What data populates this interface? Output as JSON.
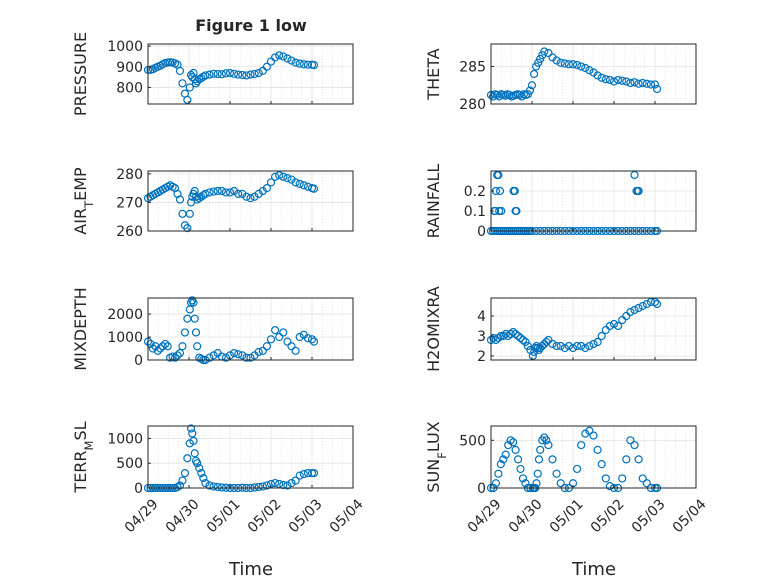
{
  "figure_title": "Figure 1 low",
  "x_tick_labels": [
    "04/29",
    "04/30",
    "05/01",
    "05/02",
    "05/03",
    "05/04"
  ],
  "x_label": "Time",
  "marker_color": "#0072BD",
  "chart_data": [
    {
      "type": "scatter",
      "ylabel": "PRESSURE",
      "xlim": [
        "04/29",
        "05/04"
      ],
      "ylim": [
        720,
        1010
      ],
      "grid": true,
      "yticks": [
        800,
        900,
        1000
      ],
      "x": [
        0.0,
        0.06,
        0.12,
        0.18,
        0.24,
        0.3,
        0.36,
        0.42,
        0.48,
        0.54,
        0.6,
        0.66,
        0.72,
        0.78,
        0.84,
        0.9,
        0.96,
        1.02,
        1.05,
        1.08,
        1.11,
        1.14,
        1.17,
        1.2,
        1.25,
        1.3,
        1.35,
        1.4,
        1.5,
        1.6,
        1.7,
        1.8,
        1.9,
        2.0,
        2.1,
        2.2,
        2.3,
        2.4,
        2.5,
        2.6,
        2.7,
        2.8,
        2.9,
        3.0,
        3.1,
        3.2,
        3.3,
        3.4,
        3.5,
        3.6,
        3.7,
        3.8,
        3.9,
        4.0,
        4.05
      ],
      "y": [
        885,
        885,
        888,
        895,
        900,
        905,
        912,
        918,
        920,
        922,
        920,
        916,
        910,
        880,
        820,
        770,
        740,
        800,
        860,
        850,
        870,
        840,
        820,
        830,
        840,
        845,
        852,
        858,
        862,
        866,
        865,
        864,
        868,
        870,
        866,
        862,
        860,
        858,
        862,
        865,
        870,
        880,
        900,
        925,
        945,
        955,
        950,
        940,
        930,
        920,
        915,
        912,
        910,
        910,
        908
      ]
    },
    {
      "type": "scatter",
      "ylabel": "THETA",
      "xlim": [
        "04/29",
        "05/04"
      ],
      "ylim": [
        280,
        288
      ],
      "grid": true,
      "yticks": [
        280,
        285
      ],
      "x": [
        0.0,
        0.05,
        0.1,
        0.15,
        0.2,
        0.25,
        0.3,
        0.35,
        0.4,
        0.45,
        0.5,
        0.55,
        0.6,
        0.65,
        0.7,
        0.75,
        0.8,
        0.85,
        0.9,
        0.95,
        1.0,
        1.05,
        1.1,
        1.15,
        1.2,
        1.25,
        1.3,
        1.4,
        1.5,
        1.6,
        1.7,
        1.8,
        1.9,
        2.0,
        2.1,
        2.2,
        2.3,
        2.4,
        2.5,
        2.6,
        2.7,
        2.8,
        2.9,
        3.0,
        3.1,
        3.2,
        3.3,
        3.4,
        3.5,
        3.6,
        3.7,
        3.8,
        3.9,
        4.0,
        4.05
      ],
      "y": [
        281.2,
        281.0,
        281.3,
        281.2,
        281.0,
        281.3,
        281.2,
        281.1,
        281.3,
        281.2,
        281.0,
        281.1,
        281.2,
        281.3,
        281.2,
        281.0,
        281.3,
        281.2,
        281.3,
        281.8,
        282.5,
        284.0,
        285.0,
        285.5,
        286.0,
        286.5,
        287.0,
        286.8,
        286.2,
        285.8,
        285.5,
        285.4,
        285.3,
        285.3,
        285.2,
        285.0,
        284.8,
        284.5,
        284.2,
        283.8,
        283.5,
        283.3,
        283.2,
        283.0,
        283.2,
        283.1,
        283.0,
        282.8,
        282.9,
        282.7,
        282.8,
        282.7,
        282.6,
        282.6,
        282.0
      ]
    },
    {
      "type": "scatter",
      "ylabel": "AIR_TEMP",
      "xlim": [
        "04/29",
        "05/04"
      ],
      "ylim": [
        260,
        281
      ],
      "grid": true,
      "yticks": [
        260,
        270,
        280
      ],
      "x": [
        0.0,
        0.06,
        0.12,
        0.18,
        0.24,
        0.3,
        0.36,
        0.42,
        0.48,
        0.54,
        0.6,
        0.66,
        0.72,
        0.78,
        0.84,
        0.9,
        0.96,
        1.02,
        1.05,
        1.08,
        1.11,
        1.14,
        1.17,
        1.2,
        1.25,
        1.3,
        1.35,
        1.4,
        1.5,
        1.6,
        1.7,
        1.8,
        1.9,
        2.0,
        2.1,
        2.2,
        2.3,
        2.4,
        2.5,
        2.6,
        2.7,
        2.8,
        2.9,
        3.0,
        3.1,
        3.2,
        3.3,
        3.4,
        3.5,
        3.6,
        3.7,
        3.8,
        3.9,
        4.0,
        4.05
      ],
      "y": [
        271.5,
        272,
        272.5,
        273,
        273.5,
        274,
        274.5,
        275,
        275.5,
        276,
        275.5,
        275,
        273,
        271,
        266,
        262,
        261,
        266,
        270,
        272,
        273,
        274,
        272,
        271,
        271.5,
        272,
        272.5,
        273,
        273.5,
        273.8,
        274,
        274,
        273.5,
        273.5,
        274,
        273,
        273,
        272,
        271.5,
        272,
        273,
        274,
        275,
        277,
        279,
        279.5,
        279,
        278.5,
        278,
        277,
        276.5,
        276,
        275.5,
        275,
        274.8
      ]
    },
    {
      "type": "scatter",
      "ylabel": "RAINFALL",
      "xlim": [
        "04/29",
        "05/04"
      ],
      "ylim": [
        0,
        0.3
      ],
      "grid": true,
      "yticks": [
        0,
        0.1,
        0.2
      ],
      "x": [
        0.0,
        0.05,
        0.1,
        0.15,
        0.2,
        0.25,
        0.3,
        0.35,
        0.4,
        0.45,
        0.5,
        0.55,
        0.6,
        0.65,
        0.7,
        0.75,
        0.8,
        0.85,
        0.9,
        0.95,
        1.0,
        1.1,
        1.2,
        1.3,
        1.4,
        1.5,
        1.6,
        1.7,
        1.8,
        1.9,
        2.0,
        2.1,
        2.2,
        2.3,
        2.4,
        2.5,
        2.6,
        2.7,
        2.8,
        2.9,
        3.0,
        3.1,
        3.2,
        3.3,
        3.4,
        3.5,
        3.6,
        3.7,
        3.8,
        3.9,
        4.0,
        4.05,
        0.1,
        0.12,
        0.15,
        0.08,
        0.2,
        0.22,
        0.18,
        0.25,
        0.55,
        0.6,
        0.62,
        0.58,
        3.5,
        3.55,
        3.6,
        3.58
      ],
      "y": [
        0,
        0,
        0,
        0,
        0,
        0,
        0,
        0,
        0,
        0,
        0,
        0,
        0,
        0,
        0,
        0,
        0,
        0,
        0,
        0,
        0,
        0,
        0,
        0,
        0,
        0,
        0,
        0,
        0,
        0,
        0,
        0,
        0,
        0,
        0,
        0,
        0,
        0,
        0,
        0,
        0,
        0,
        0,
        0,
        0,
        0,
        0,
        0,
        0,
        0,
        0,
        0,
        0.1,
        0.2,
        0.28,
        0.1,
        0.1,
        0.2,
        0.28,
        0.1,
        0.2,
        0.1,
        0.1,
        0.2,
        0.28,
        0.2,
        0.2,
        0.2
      ]
    },
    {
      "type": "scatter",
      "ylabel": "MIXDEPTH",
      "xlim": [
        "04/29",
        "05/04"
      ],
      "ylim": [
        0,
        2700
      ],
      "grid": true,
      "yticks": [
        0,
        1000,
        2000
      ],
      "x": [
        0.0,
        0.06,
        0.12,
        0.18,
        0.24,
        0.3,
        0.36,
        0.42,
        0.48,
        0.54,
        0.6,
        0.66,
        0.72,
        0.78,
        0.84,
        0.9,
        0.96,
        1.02,
        1.05,
        1.08,
        1.11,
        1.14,
        1.17,
        1.2,
        1.25,
        1.3,
        1.35,
        1.4,
        1.5,
        1.6,
        1.7,
        1.8,
        1.9,
        2.0,
        2.1,
        2.2,
        2.3,
        2.4,
        2.5,
        2.6,
        2.7,
        2.8,
        2.9,
        3.0,
        3.1,
        3.2,
        3.3,
        3.4,
        3.5,
        3.6,
        3.7,
        3.8,
        3.9,
        4.0,
        4.05
      ],
      "y": [
        800,
        700,
        500,
        600,
        400,
        500,
        600,
        700,
        600,
        100,
        150,
        100,
        200,
        300,
        600,
        1200,
        1800,
        2200,
        2500,
        2600,
        2500,
        1800,
        1200,
        600,
        100,
        50,
        0,
        0,
        100,
        200,
        300,
        150,
        100,
        200,
        300,
        250,
        200,
        100,
        100,
        200,
        350,
        400,
        600,
        900,
        1300,
        1000,
        1200,
        800,
        600,
        400,
        1000,
        1100,
        950,
        900,
        800
      ]
    },
    {
      "type": "scatter",
      "ylabel": "H2OMIXRA",
      "xlim": [
        "04/29",
        "05/04"
      ],
      "ylim": [
        1.8,
        4.9
      ],
      "grid": true,
      "yticks": [
        2,
        3,
        4
      ],
      "x": [
        0.0,
        0.06,
        0.12,
        0.18,
        0.24,
        0.3,
        0.36,
        0.42,
        0.48,
        0.54,
        0.6,
        0.66,
        0.72,
        0.78,
        0.84,
        0.9,
        0.96,
        1.02,
        1.05,
        1.08,
        1.11,
        1.14,
        1.17,
        1.2,
        1.25,
        1.3,
        1.35,
        1.4,
        1.5,
        1.6,
        1.7,
        1.8,
        1.9,
        2.0,
        2.1,
        2.2,
        2.3,
        2.4,
        2.5,
        2.6,
        2.7,
        2.8,
        2.9,
        3.0,
        3.1,
        3.2,
        3.3,
        3.4,
        3.5,
        3.6,
        3.7,
        3.8,
        3.9,
        4.0,
        4.05
      ],
      "y": [
        2.8,
        2.9,
        2.8,
        2.9,
        3.0,
        3.0,
        3.1,
        3.0,
        3.1,
        3.2,
        3.1,
        3.0,
        2.9,
        2.8,
        2.7,
        2.5,
        2.3,
        2.0,
        2.2,
        2.4,
        2.5,
        2.4,
        2.3,
        2.4,
        2.5,
        2.6,
        2.7,
        2.8,
        2.6,
        2.5,
        2.5,
        2.4,
        2.5,
        2.4,
        2.5,
        2.5,
        2.4,
        2.5,
        2.6,
        2.7,
        3.0,
        3.3,
        3.5,
        3.6,
        3.5,
        3.8,
        4.0,
        4.2,
        4.3,
        4.4,
        4.5,
        4.6,
        4.7,
        4.7,
        4.6
      ]
    },
    {
      "type": "scatter",
      "ylabel": "TERR_MSL",
      "xlim": [
        "04/29",
        "05/04"
      ],
      "ylim": [
        0,
        1250
      ],
      "grid": true,
      "yticks": [
        0,
        500,
        1000
      ],
      "x": [
        0.0,
        0.06,
        0.12,
        0.18,
        0.24,
        0.3,
        0.36,
        0.42,
        0.48,
        0.54,
        0.6,
        0.66,
        0.72,
        0.78,
        0.84,
        0.9,
        0.96,
        1.02,
        1.05,
        1.08,
        1.11,
        1.14,
        1.17,
        1.2,
        1.25,
        1.3,
        1.35,
        1.4,
        1.5,
        1.6,
        1.7,
        1.8,
        1.9,
        2.0,
        2.1,
        2.2,
        2.3,
        2.4,
        2.5,
        2.6,
        2.7,
        2.8,
        2.9,
        3.0,
        3.1,
        3.2,
        3.3,
        3.4,
        3.5,
        3.6,
        3.7,
        3.8,
        3.9,
        4.0,
        4.05
      ],
      "y": [
        0,
        0,
        0,
        0,
        0,
        0,
        0,
        0,
        0,
        0,
        0,
        0,
        20,
        50,
        150,
        300,
        600,
        900,
        1200,
        1100,
        950,
        700,
        550,
        500,
        400,
        300,
        200,
        100,
        50,
        30,
        20,
        10,
        5,
        0,
        0,
        0,
        5,
        0,
        0,
        10,
        20,
        30,
        50,
        80,
        100,
        80,
        60,
        50,
        100,
        150,
        250,
        280,
        300,
        300,
        300
      ]
    },
    {
      "type": "scatter",
      "ylabel": "SUN_FLUX",
      "xlim": [
        "04/29",
        "05/04"
      ],
      "ylim": [
        0,
        650
      ],
      "grid": true,
      "yticks": [
        0,
        500
      ],
      "x": [
        0.0,
        0.06,
        0.12,
        0.18,
        0.24,
        0.3,
        0.36,
        0.42,
        0.48,
        0.54,
        0.6,
        0.66,
        0.72,
        0.78,
        0.84,
        0.9,
        0.96,
        1.02,
        1.05,
        1.08,
        1.11,
        1.14,
        1.17,
        1.2,
        1.25,
        1.3,
        1.35,
        1.4,
        1.5,
        1.6,
        1.7,
        1.8,
        1.9,
        2.0,
        2.1,
        2.2,
        2.3,
        2.4,
        2.5,
        2.6,
        2.7,
        2.8,
        2.9,
        3.0,
        3.1,
        3.2,
        3.3,
        3.4,
        3.5,
        3.6,
        3.7,
        3.8,
        3.9,
        4.0,
        4.05
      ],
      "y": [
        0,
        0,
        50,
        150,
        250,
        300,
        350,
        450,
        500,
        480,
        400,
        300,
        200,
        100,
        50,
        0,
        0,
        0,
        0,
        0,
        50,
        150,
        300,
        400,
        500,
        530,
        500,
        450,
        300,
        150,
        50,
        0,
        0,
        50,
        200,
        450,
        570,
        600,
        550,
        400,
        250,
        100,
        20,
        0,
        0,
        100,
        300,
        500,
        450,
        300,
        100,
        50,
        0,
        0,
        0
      ]
    }
  ]
}
